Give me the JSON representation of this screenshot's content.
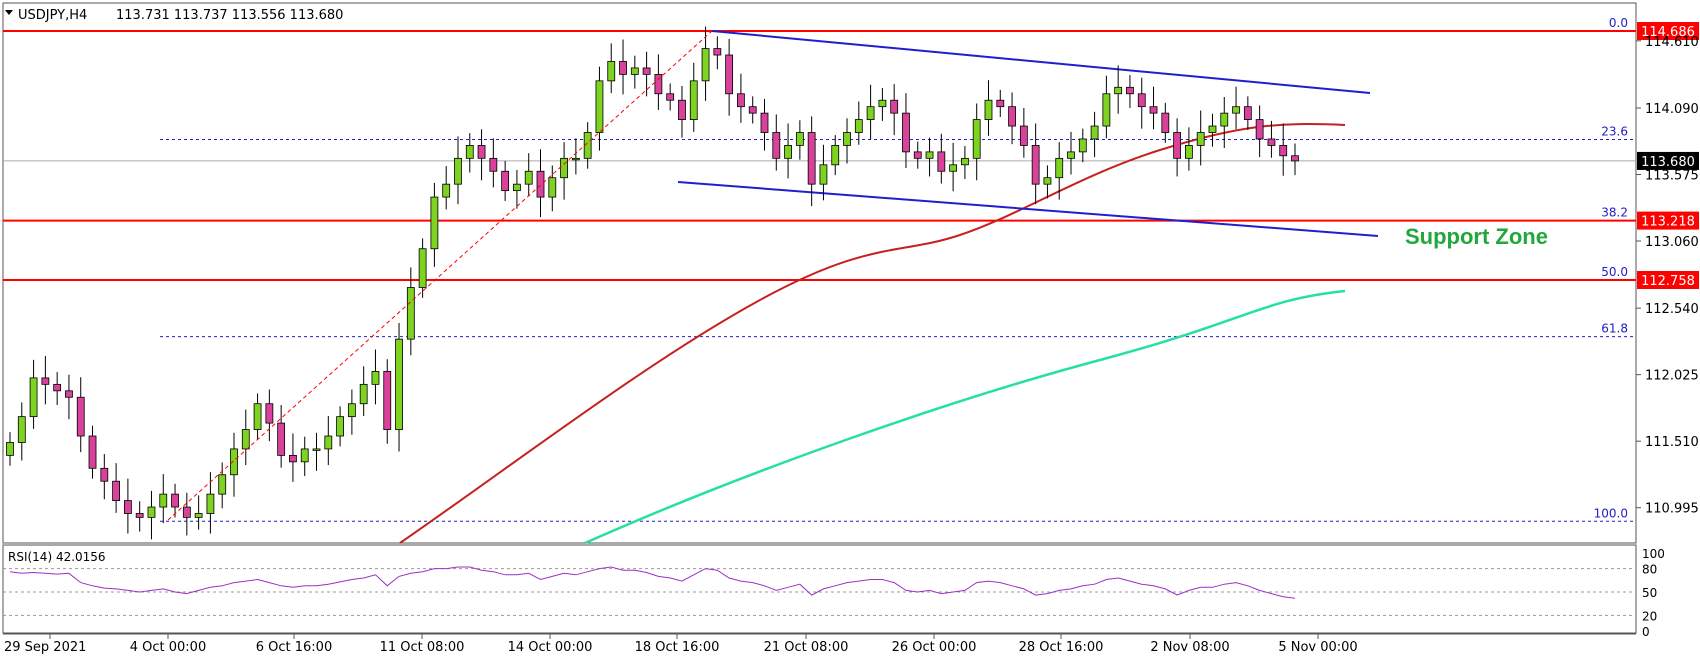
{
  "header": {
    "symbol_tf": "USDJPY,H4",
    "ohlc": "113.731 113.737 113.556 113.680"
  },
  "annotations": {
    "support_zone": "Support Zone"
  },
  "fib_levels": [
    {
      "label": "0.0",
      "price": 114.686
    },
    {
      "label": "23.6",
      "price": 113.846
    },
    {
      "label": "38.2",
      "price": 113.218
    },
    {
      "label": "50.0",
      "price": 112.758
    },
    {
      "label": "61.8",
      "price": 112.32
    },
    {
      "label": "100.0",
      "price": 110.89
    }
  ],
  "horizontal_levels": [
    {
      "label": "114.686",
      "price": 114.686
    },
    {
      "label": "113.218",
      "price": 113.218
    },
    {
      "label": "112.758",
      "price": 112.758
    }
  ],
  "current_price": {
    "label": "113.680",
    "price": 113.68
  },
  "y_axis_ticks": [
    "114.610",
    "114.090",
    "113.575",
    "113.060",
    "112.540",
    "112.025",
    "111.510",
    "110.995"
  ],
  "x_axis_ticks": [
    "29 Sep 2021",
    "4 Oct 00:00",
    "6 Oct 16:00",
    "11 Oct 08:00",
    "14 Oct 00:00",
    "18 Oct 16:00",
    "21 Oct 08:00",
    "26 Oct 00:00",
    "28 Oct 16:00",
    "2 Nov 08:00",
    "5 Nov 00:00"
  ],
  "rsi": {
    "label": "RSI(14) 42.0156",
    "axis_ticks": [
      "100",
      "80",
      "50",
      "20",
      "0"
    ]
  },
  "colors": {
    "bull": "#7ed321",
    "bear": "#d8429a",
    "red_level": "#ff0000",
    "channel": "#1f1fd0",
    "ma_red": "#c62020",
    "ma_green": "#27e0a0",
    "fib": "#2020c8",
    "rsi_line": "#9b30c8",
    "support_text": "#22a83a"
  },
  "chart_data": {
    "type": "candlestick",
    "title": "USDJPY,H4",
    "ylim": [
      110.85,
      114.75
    ],
    "ohlc_closes_approx": [
      111.5,
      111.7,
      112.0,
      111.95,
      111.9,
      111.85,
      111.55,
      111.3,
      111.2,
      111.05,
      110.95,
      110.92,
      111.0,
      111.1,
      111.0,
      110.92,
      110.95,
      111.1,
      111.25,
      111.45,
      111.6,
      111.8,
      111.65,
      111.4,
      111.35,
      111.45,
      111.45,
      111.55,
      111.7,
      111.8,
      111.95,
      112.05,
      111.6,
      112.3,
      112.7,
      113.0,
      113.4,
      113.5,
      113.7,
      113.8,
      113.7,
      113.6,
      113.45,
      113.5,
      113.6,
      113.4,
      113.55,
      113.7,
      113.7,
      113.9,
      114.3,
      114.45,
      114.35,
      114.4,
      114.35,
      114.2,
      114.15,
      114.0,
      114.3,
      114.55,
      114.5,
      114.2,
      114.1,
      114.05,
      113.9,
      113.7,
      113.8,
      113.9,
      113.5,
      113.65,
      113.8,
      113.9,
      114.0,
      114.1,
      114.15,
      114.05,
      113.75,
      113.7,
      113.75,
      113.6,
      113.65,
      113.7,
      114.0,
      114.15,
      114.1,
      113.95,
      113.8,
      113.5,
      113.55,
      113.7,
      113.75,
      113.85,
      113.95,
      114.2,
      114.25,
      114.2,
      114.1,
      114.05,
      113.9,
      113.7,
      113.8,
      113.9,
      113.95,
      114.05,
      114.1,
      114.0,
      113.85,
      113.8,
      113.72,
      113.68
    ],
    "rsi_values_approx": [
      76,
      74,
      75,
      74,
      73,
      74,
      62,
      58,
      55,
      54,
      52,
      50,
      52,
      54,
      50,
      48,
      52,
      56,
      58,
      62,
      64,
      66,
      62,
      58,
      56,
      58,
      58,
      60,
      63,
      66,
      68,
      72,
      58,
      70,
      74,
      76,
      80,
      80,
      82,
      82,
      78,
      76,
      72,
      72,
      74,
      66,
      70,
      74,
      72,
      76,
      80,
      82,
      78,
      78,
      75,
      70,
      68,
      64,
      72,
      80,
      78,
      68,
      64,
      62,
      58,
      52,
      56,
      60,
      46,
      54,
      58,
      62,
      64,
      66,
      66,
      62,
      52,
      50,
      52,
      48,
      50,
      52,
      62,
      64,
      62,
      58,
      54,
      46,
      48,
      52,
      54,
      58,
      60,
      66,
      68,
      64,
      60,
      58,
      54,
      46,
      52,
      56,
      56,
      60,
      62,
      58,
      52,
      48,
      44,
      42
    ]
  }
}
